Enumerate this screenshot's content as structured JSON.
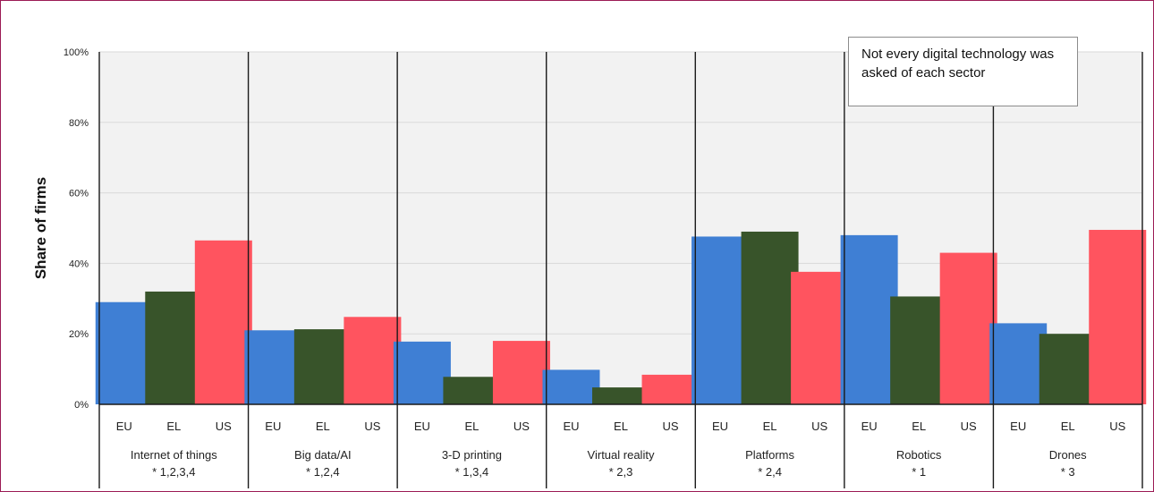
{
  "chart_data": {
    "type": "bar",
    "title": "",
    "xlabel": "",
    "ylabel": "Share of firms",
    "ylim": [
      0,
      100
    ],
    "yticks": [
      "0%",
      "20%",
      "40%",
      "60%",
      "80%",
      "100%"
    ],
    "grid": true,
    "colors": {
      "EU": "#3f7fd4",
      "EL": "#38542a",
      "US": "#ff545f",
      "plot_background": "#f2f2f2",
      "gridline": "#d9d9d9"
    },
    "groups": [
      {
        "name": "Internet of things",
        "note": "* 1,2,3,4",
        "bars": [
          {
            "label": "EU",
            "value": 29
          },
          {
            "label": "EL",
            "value": 32
          },
          {
            "label": "US",
            "value": 46.5
          }
        ]
      },
      {
        "name": "Big data/AI",
        "note": "* 1,2,4",
        "bars": [
          {
            "label": "EU",
            "value": 21
          },
          {
            "label": "EL",
            "value": 21.3
          },
          {
            "label": "US",
            "value": 24.8
          }
        ]
      },
      {
        "name": "3-D printing",
        "note": "* 1,3,4",
        "bars": [
          {
            "label": "EU",
            "value": 17.8
          },
          {
            "label": "EL",
            "value": 7.8
          },
          {
            "label": "US",
            "value": 18
          }
        ]
      },
      {
        "name": "Virtual reality",
        "note": "* 2,3",
        "bars": [
          {
            "label": "EU",
            "value": 9.8
          },
          {
            "label": "EL",
            "value": 4.8
          },
          {
            "label": "US",
            "value": 8.4
          }
        ]
      },
      {
        "name": "Platforms",
        "note": "* 2,4",
        "bars": [
          {
            "label": "EU",
            "value": 47.6
          },
          {
            "label": "EL",
            "value": 49
          },
          {
            "label": "US",
            "value": 37.6
          }
        ]
      },
      {
        "name": "Robotics",
        "note": "* 1",
        "bars": [
          {
            "label": "EU",
            "value": 48
          },
          {
            "label": "EL",
            "value": 30.6
          },
          {
            "label": "US",
            "value": 43
          }
        ]
      },
      {
        "name": "Drones",
        "note": "* 3",
        "bars": [
          {
            "label": "EU",
            "value": 23
          },
          {
            "label": "EL",
            "value": 20
          },
          {
            "label": "US",
            "value": 49.5
          }
        ]
      }
    ],
    "annotation": "Not every digital technology was asked of each sector"
  }
}
